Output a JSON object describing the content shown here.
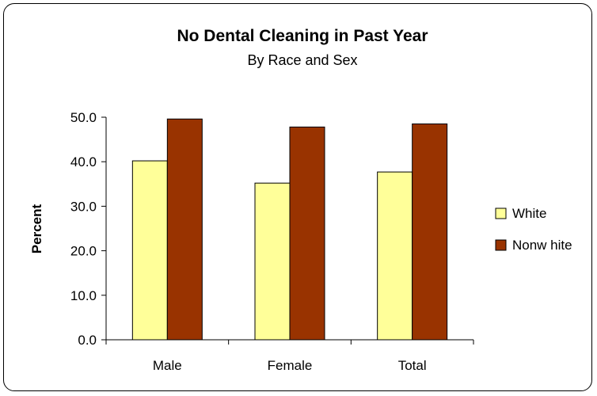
{
  "chart_data": {
    "type": "bar",
    "title": "No Dental Cleaning in Past Year",
    "subtitle": "By Race and Sex",
    "xlabel": "",
    "ylabel": "Percent",
    "categories": [
      "Male",
      "Female",
      "Total"
    ],
    "series": [
      {
        "name": "White",
        "values": [
          40.2,
          35.2,
          37.7
        ],
        "color": "#FFFF99"
      },
      {
        "name": "Nonw hite",
        "values": [
          49.6,
          47.8,
          48.5
        ],
        "color": "#993300"
      }
    ],
    "ylim": [
      0,
      50
    ],
    "yticks": [
      "0.0",
      "10.0",
      "20.0",
      "30.0",
      "40.0",
      "50.0"
    ],
    "grid": false,
    "legend_position": "right"
  }
}
